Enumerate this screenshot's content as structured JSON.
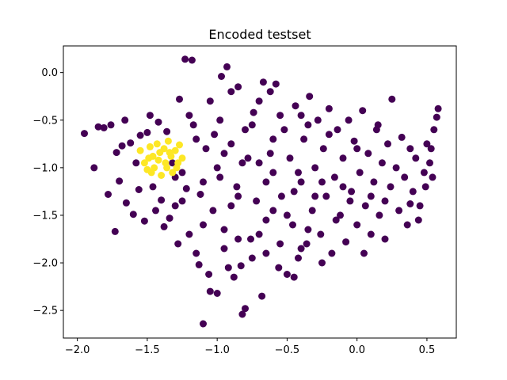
{
  "chart_data": {
    "type": "scatter",
    "title": "Encoded testset",
    "xlabel": "",
    "ylabel": "",
    "xlim": [
      -2.1,
      0.71
    ],
    "ylim": [
      -2.79,
      0.28
    ],
    "x_ticks": [
      -2.0,
      -1.5,
      -1.0,
      -0.5,
      0.0,
      0.5
    ],
    "x_tick_labels": [
      "−2.0",
      "−1.5",
      "−1.0",
      "−0.5",
      "0.0",
      "0.5"
    ],
    "y_ticks": [
      0.0,
      -0.5,
      -1.0,
      -1.5,
      -2.0,
      -2.5
    ],
    "y_tick_labels": [
      "0.0",
      "−0.5",
      "−1.0",
      "−1.5",
      "−2.0",
      "−2.5"
    ],
    "grid": false,
    "legend": "none",
    "series": [
      {
        "color": "#440154",
        "points": [
          [
            -1.95,
            -0.64
          ],
          [
            -1.88,
            -1.0
          ],
          [
            -1.85,
            -0.57
          ],
          [
            -1.81,
            -0.58
          ],
          [
            -1.78,
            -1.28
          ],
          [
            -1.76,
            -0.55
          ],
          [
            -1.73,
            -1.67
          ],
          [
            -1.72,
            -0.84
          ],
          [
            -1.7,
            -1.14
          ],
          [
            -1.68,
            -0.77
          ],
          [
            -1.66,
            -0.5
          ],
          [
            -1.65,
            -1.37
          ],
          [
            -1.62,
            -0.74
          ],
          [
            -1.6,
            -1.49
          ],
          [
            -1.58,
            -0.95
          ],
          [
            -1.56,
            -1.23
          ],
          [
            -1.55,
            -0.66
          ],
          [
            -1.52,
            -1.56
          ],
          [
            -1.5,
            -0.63
          ],
          [
            -1.48,
            -0.45
          ],
          [
            -1.46,
            -1.2
          ],
          [
            -1.44,
            -1.45
          ],
          [
            -1.42,
            -0.52
          ],
          [
            -1.4,
            -1.34
          ],
          [
            -1.38,
            -1.62
          ],
          [
            -1.36,
            -0.62
          ],
          [
            -1.34,
            -1.53
          ],
          [
            -1.32,
            -0.95
          ],
          [
            -1.3,
            -1.4
          ],
          [
            -1.28,
            -1.8
          ],
          [
            -1.27,
            -0.28
          ],
          [
            -1.25,
            -1.05
          ],
          [
            -1.23,
            0.14
          ],
          [
            -1.22,
            -1.22
          ],
          [
            -1.2,
            -1.7
          ],
          [
            -1.18,
            0.13
          ],
          [
            -1.17,
            -0.55
          ],
          [
            -1.15,
            -1.9
          ],
          [
            -1.13,
            -2.02
          ],
          [
            -1.12,
            -1.28
          ],
          [
            -1.1,
            -2.64
          ],
          [
            -1.08,
            -0.8
          ],
          [
            -1.06,
            -2.12
          ],
          [
            -1.05,
            -2.3
          ],
          [
            -1.03,
            -1.45
          ],
          [
            -1.02,
            -0.65
          ],
          [
            -1.0,
            -2.32
          ],
          [
            -0.98,
            -1.1
          ],
          [
            -0.97,
            -0.04
          ],
          [
            -0.95,
            -1.65
          ],
          [
            -0.93,
            0.06
          ],
          [
            -0.92,
            -2.05
          ],
          [
            -0.9,
            -0.75
          ],
          [
            -0.88,
            -2.15
          ],
          [
            -0.86,
            -1.2
          ],
          [
            -0.85,
            -0.15
          ],
          [
            -0.83,
            -2.03
          ],
          [
            -0.82,
            -2.54
          ],
          [
            -0.8,
            -2.48
          ],
          [
            -0.78,
            -0.9
          ],
          [
            -0.76,
            -1.75
          ],
          [
            -0.74,
            -0.42
          ],
          [
            -0.72,
            -1.35
          ],
          [
            -0.7,
            -0.95
          ],
          [
            -0.68,
            -2.35
          ],
          [
            -0.67,
            -0.1
          ],
          [
            -0.65,
            -1.55
          ],
          [
            -0.62,
            -0.2
          ],
          [
            -0.6,
            -1.05
          ],
          [
            -0.58,
            -0.12
          ],
          [
            -0.56,
            -2.05
          ],
          [
            -0.54,
            -1.3
          ],
          [
            -0.52,
            -0.6
          ],
          [
            -0.5,
            -2.12
          ],
          [
            -0.48,
            -0.9
          ],
          [
            -0.46,
            -1.6
          ],
          [
            -0.44,
            -0.35
          ],
          [
            -0.42,
            -1.95
          ],
          [
            -0.4,
            -1.15
          ],
          [
            -0.38,
            -0.7
          ],
          [
            -0.36,
            -1.8
          ],
          [
            -0.34,
            -0.25
          ],
          [
            -0.32,
            -1.45
          ],
          [
            -0.3,
            -1.0
          ],
          [
            -0.28,
            -0.5
          ],
          [
            -0.26,
            -1.7
          ],
          [
            -0.24,
            -0.8
          ],
          [
            -0.22,
            -1.3
          ],
          [
            -0.2,
            -0.38
          ],
          [
            -0.18,
            -1.9
          ],
          [
            -0.16,
            -1.1
          ],
          [
            -0.14,
            -0.6
          ],
          [
            -0.12,
            -1.5
          ],
          [
            -0.1,
            -0.9
          ],
          [
            -0.08,
            -1.78
          ],
          [
            -0.06,
            -0.5
          ],
          [
            -0.04,
            -1.25
          ],
          [
            -0.02,
            -0.72
          ],
          [
            0.0,
            -1.6
          ],
          [
            0.02,
            -1.05
          ],
          [
            0.04,
            -0.4
          ],
          [
            0.06,
            -1.4
          ],
          [
            0.08,
            -0.85
          ],
          [
            0.1,
            -1.7
          ],
          [
            0.12,
            -1.15
          ],
          [
            0.14,
            -0.6
          ],
          [
            0.16,
            -1.5
          ],
          [
            0.18,
            -0.95
          ],
          [
            0.2,
            -1.35
          ],
          [
            0.22,
            -0.75
          ],
          [
            0.24,
            -1.2
          ],
          [
            0.25,
            -0.28
          ],
          [
            0.28,
            -1.0
          ],
          [
            0.3,
            -1.45
          ],
          [
            0.32,
            -0.68
          ],
          [
            0.34,
            -1.1
          ],
          [
            0.36,
            -1.6
          ],
          [
            0.38,
            -0.8
          ],
          [
            0.4,
            -1.25
          ],
          [
            0.42,
            -0.9
          ],
          [
            0.45,
            -1.4
          ],
          [
            0.48,
            -1.05
          ],
          [
            0.5,
            -0.75
          ],
          [
            0.52,
            -0.95
          ],
          [
            0.54,
            -1.1
          ],
          [
            0.55,
            -0.6
          ],
          [
            0.57,
            -0.47
          ],
          [
            0.58,
            -0.38
          ],
          [
            0.53,
            -0.8
          ],
          [
            0.49,
            -1.2
          ],
          [
            0.44,
            -1.55
          ],
          [
            0.38,
            -1.38
          ],
          [
            -0.9,
            -1.4
          ],
          [
            -0.7,
            -1.7
          ],
          [
            -0.5,
            -1.5
          ],
          [
            -0.3,
            -1.3
          ],
          [
            -0.1,
            -1.2
          ],
          [
            0.1,
            -1.3
          ],
          [
            -0.8,
            -0.6
          ],
          [
            -0.6,
            -0.7
          ],
          [
            -0.4,
            -0.45
          ],
          [
            -0.2,
            -0.65
          ],
          [
            0.0,
            -0.8
          ],
          [
            0.15,
            -0.55
          ],
          [
            -1.0,
            -1.0
          ],
          [
            -0.85,
            -1.3
          ],
          [
            -0.65,
            -1.15
          ],
          [
            -0.45,
            -1.25
          ],
          [
            -0.25,
            -1.15
          ],
          [
            -0.05,
            -1.35
          ],
          [
            -1.1,
            -1.6
          ],
          [
            -0.95,
            -1.85
          ],
          [
            -0.75,
            -1.95
          ],
          [
            -0.55,
            -1.8
          ],
          [
            -0.35,
            -1.65
          ],
          [
            -0.15,
            -1.55
          ],
          [
            -1.2,
            -0.45
          ],
          [
            -1.05,
            -0.3
          ],
          [
            -0.9,
            -0.2
          ],
          [
            -0.7,
            -0.3
          ],
          [
            -0.55,
            -0.45
          ],
          [
            -0.35,
            -0.55
          ],
          [
            -1.25,
            -1.35
          ],
          [
            -1.1,
            -1.15
          ],
          [
            -0.95,
            -0.85
          ],
          [
            -0.75,
            -0.55
          ],
          [
            -0.6,
            -1.45
          ],
          [
            -0.4,
            -1.85
          ],
          [
            0.05,
            -1.9
          ],
          [
            0.2,
            -1.75
          ],
          [
            -0.25,
            -2.0
          ],
          [
            -0.45,
            -2.15
          ],
          [
            -0.65,
            -1.9
          ],
          [
            -0.85,
            -1.75
          ],
          [
            -1.3,
            -1.1
          ],
          [
            -1.15,
            -0.7
          ],
          [
            -0.98,
            -0.5
          ],
          [
            -0.82,
            -0.95
          ],
          [
            -0.62,
            -0.85
          ],
          [
            -0.42,
            -1.05
          ]
        ]
      },
      {
        "color": "#fde725",
        "points": [
          [
            -1.55,
            -0.82
          ],
          [
            -1.52,
            -0.95
          ],
          [
            -1.5,
            -1.02
          ],
          [
            -1.48,
            -0.78
          ],
          [
            -1.46,
            -0.88
          ],
          [
            -1.45,
            -1.0
          ],
          [
            -1.43,
            -0.75
          ],
          [
            -1.42,
            -0.92
          ],
          [
            -1.4,
            -1.08
          ],
          [
            -1.38,
            -0.8
          ],
          [
            -1.37,
            -0.95
          ],
          [
            -1.35,
            -0.72
          ],
          [
            -1.33,
            -0.88
          ],
          [
            -1.32,
            -1.05
          ],
          [
            -1.3,
            -0.82
          ],
          [
            -1.28,
            -0.95
          ],
          [
            -1.27,
            -0.76
          ],
          [
            -1.25,
            -0.9
          ],
          [
            -1.47,
            -1.05
          ],
          [
            -1.36,
            -1.0
          ],
          [
            -1.29,
            -1.0
          ],
          [
            -1.41,
            -0.84
          ],
          [
            -1.34,
            -0.84
          ],
          [
            -1.49,
            -0.9
          ]
        ]
      }
    ]
  }
}
